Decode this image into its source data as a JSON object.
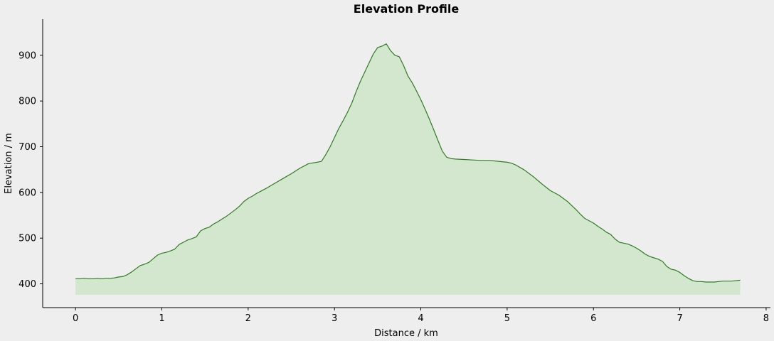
{
  "chart_data": {
    "type": "area",
    "title": "Elevation Profile",
    "xlabel": "Distance / km",
    "ylabel": "Elevation / m",
    "xlim": [
      -0.38,
      8.05
    ],
    "ylim": [
      348,
      979
    ],
    "fill_baseline": 376,
    "x_ticks": [
      0,
      1,
      2,
      3,
      4,
      5,
      6,
      7,
      8
    ],
    "x_tick_labels": [
      "0",
      "1",
      "2",
      "3",
      "4",
      "5",
      "6",
      "7",
      "8"
    ],
    "y_ticks": [
      400,
      500,
      600,
      700,
      800,
      900
    ],
    "y_tick_labels": [
      "400",
      "500",
      "600",
      "700",
      "800",
      "900"
    ],
    "grid": false,
    "legend": false,
    "colors": {
      "line": "#2e7d1f",
      "fill": "#d3e7ce",
      "background": "#eeeeee"
    },
    "series": [
      {
        "x": [
          0,
          0.05,
          0.1,
          0.15,
          0.2,
          0.25,
          0.3,
          0.35,
          0.4,
          0.45,
          0.5,
          0.55,
          0.6,
          0.65,
          0.7,
          0.75,
          0.8,
          0.85,
          0.9,
          0.95,
          1.0,
          1.05,
          1.1,
          1.15,
          1.2,
          1.25,
          1.3,
          1.35,
          1.4,
          1.45,
          1.5,
          1.55,
          1.6,
          1.65,
          1.7,
          1.75,
          1.8,
          1.85,
          1.9,
          1.95,
          2.0,
          2.05,
          2.1,
          2.15,
          2.2,
          2.3,
          2.4,
          2.5,
          2.6,
          2.7,
          2.8,
          2.85,
          2.9,
          2.95,
          3.0,
          3.05,
          3.1,
          3.15,
          3.2,
          3.25,
          3.3,
          3.35,
          3.4,
          3.45,
          3.5,
          3.55,
          3.6,
          3.65,
          3.7,
          3.75,
          3.8,
          3.85,
          3.9,
          3.95,
          4.0,
          4.05,
          4.1,
          4.15,
          4.2,
          4.25,
          4.3,
          4.35,
          4.4,
          4.5,
          4.6,
          4.7,
          4.8,
          4.9,
          5.0,
          5.05,
          5.1,
          5.2,
          5.3,
          5.4,
          5.5,
          5.6,
          5.7,
          5.75,
          5.8,
          5.85,
          5.9,
          5.95,
          6.0,
          6.05,
          6.1,
          6.15,
          6.2,
          6.25,
          6.3,
          6.35,
          6.4,
          6.45,
          6.5,
          6.55,
          6.6,
          6.65,
          6.7,
          6.75,
          6.8,
          6.85,
          6.9,
          6.95,
          7.0,
          7.05,
          7.1,
          7.15,
          7.2,
          7.25,
          7.3,
          7.35,
          7.4,
          7.45,
          7.5,
          7.55,
          7.6,
          7.65,
          7.7
        ],
        "y": [
          411,
          411,
          412,
          411,
          411,
          412,
          411,
          412,
          412,
          413,
          415,
          416,
          420,
          426,
          433,
          440,
          443,
          447,
          455,
          463,
          467,
          469,
          472,
          476,
          486,
          491,
          496,
          499,
          503,
          516,
          521,
          524,
          531,
          536,
          542,
          548,
          555,
          562,
          570,
          580,
          587,
          592,
          598,
          603,
          608,
          619,
          630,
          641,
          653,
          663,
          666,
          668,
          683,
          700,
          720,
          740,
          757,
          775,
          795,
          820,
          843,
          863,
          883,
          903,
          917,
          920,
          925,
          910,
          900,
          897,
          878,
          855,
          840,
          822,
          803,
          782,
          760,
          737,
          713,
          690,
          677,
          674,
          673,
          672,
          671,
          670,
          670,
          668,
          666,
          664,
          660,
          649,
          635,
          619,
          604,
          594,
          580,
          571,
          562,
          552,
          543,
          538,
          533,
          526,
          520,
          513,
          508,
          498,
          491,
          489,
          487,
          483,
          478,
          472,
          465,
          460,
          457,
          454,
          449,
          438,
          432,
          430,
          425,
          418,
          412,
          407,
          405,
          405,
          404,
          404,
          404,
          405,
          406,
          406,
          406,
          407,
          408
        ]
      }
    ]
  }
}
